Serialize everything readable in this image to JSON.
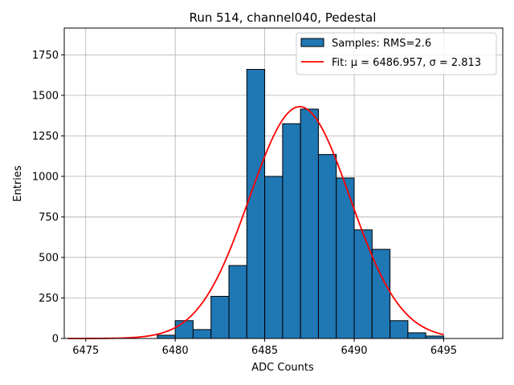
{
  "chart_data": {
    "type": "bar",
    "title": "Run 514, channel040, Pedestal",
    "xlabel": "ADC Counts",
    "ylabel": "Entries",
    "xlim": [
      6473.8,
      6498.3
    ],
    "ylim": [
      0,
      1915
    ],
    "xticks": [
      6475,
      6480,
      6485,
      6490,
      6495
    ],
    "yticks": [
      0,
      250,
      500,
      750,
      1000,
      1250,
      1500,
      1750
    ],
    "grid": true,
    "legend_position": "top-right",
    "colors": {
      "bar_fill": "#1f77b4",
      "bar_edge": "#000000",
      "fit_line": "#ff0000",
      "grid": "#b0b0b0"
    },
    "histogram": {
      "name": "Samples: RMS=2.6",
      "bin_edges": [
        6479,
        6480,
        6481,
        6482,
        6483,
        6484,
        6485,
        6486,
        6487,
        6488,
        6489,
        6490,
        6491,
        6492,
        6493,
        6494,
        6495
      ],
      "counts": [
        20,
        110,
        55,
        260,
        450,
        1660,
        1000,
        1325,
        1415,
        1135,
        990,
        670,
        550,
        110,
        35,
        15
      ]
    },
    "fit": {
      "name": "Fit: μ = 6486.957, σ = 2.813",
      "mu": 6486.957,
      "sigma": 2.813,
      "amplitude": 1430,
      "x_range": [
        6474,
        6495
      ]
    }
  }
}
